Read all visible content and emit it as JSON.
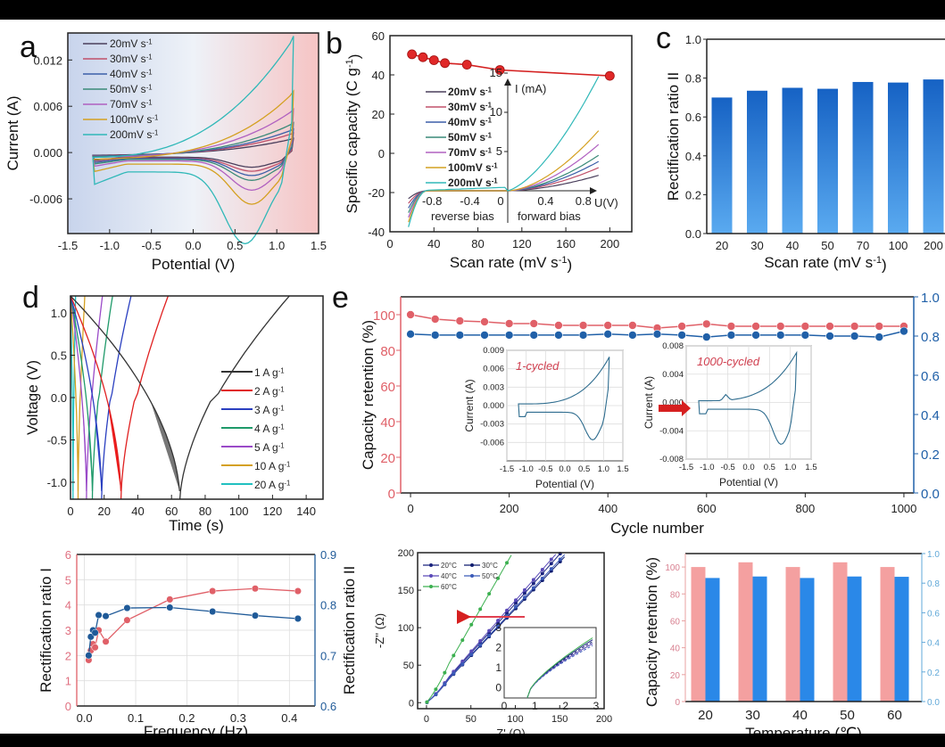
{
  "figure": {
    "panel_labels": [
      "a",
      "b",
      "c",
      "d",
      "e"
    ]
  },
  "chart_data": [
    {
      "id": "a",
      "type": "line",
      "title": "",
      "xlabel": "Potential  (V)",
      "ylabel": "Current  (A)",
      "xlim": [
        -1.5,
        1.5
      ],
      "ylim": [
        -0.0105,
        0.0155
      ],
      "xticks": [
        "-1.5",
        "-1.0",
        "-0.5",
        "0.0",
        "0.5",
        "1.0",
        "1.5"
      ],
      "xtick_values": [
        -1.5,
        -1.0,
        -0.5,
        0.0,
        0.5,
        1.0,
        1.5
      ],
      "yticks": [
        "-0.006",
        "0.000",
        "0.006",
        "0.012"
      ],
      "ytick_values": [
        -0.006,
        0.0,
        0.006,
        0.012
      ],
      "legend_position": "top-left",
      "background": "gradient blue (left) to red (right)",
      "series": [
        {
          "name": "20mV s-1",
          "color": "#4a3f5c",
          "peak_anodic": 0.0018,
          "peak_cathodic": -0.0013,
          "end_low": -0.001
        },
        {
          "name": "30mV s-1",
          "color": "#c0506a",
          "peak_anodic": 0.0025,
          "peak_cathodic": -0.0017,
          "end_low": -0.0012
        },
        {
          "name": "40mV s-1",
          "color": "#3b5fa8",
          "peak_anodic": 0.003,
          "peak_cathodic": -0.0022,
          "end_low": -0.0013
        },
        {
          "name": "50mV s-1",
          "color": "#3a8a78",
          "peak_anodic": 0.0038,
          "peak_cathodic": -0.0027,
          "end_low": -0.0015
        },
        {
          "name": "70mV s-1",
          "color": "#b060c0",
          "peak_anodic": 0.0055,
          "peak_cathodic": -0.0038,
          "end_low": -0.0018
        },
        {
          "name": "100mV s-1",
          "color": "#d4a020",
          "peak_anodic": 0.0078,
          "peak_cathodic": -0.0052,
          "end_low": -0.0025
        },
        {
          "name": "200mV s-1",
          "color": "#30b8b8",
          "peak_anodic": 0.0148,
          "peak_cathodic": -0.0093,
          "end_low": -0.0042
        }
      ]
    },
    {
      "id": "b",
      "type": "line",
      "xlabel": "Scan rate (mV s-1)",
      "ylabel": "Specific capacity (C g-1)",
      "xlim": [
        0,
        220
      ],
      "ylim": [
        -40,
        60
      ],
      "xticks": [
        "0",
        "40",
        "80",
        "120",
        "160",
        "200"
      ],
      "xtick_values": [
        0,
        40,
        80,
        120,
        160,
        200
      ],
      "yticks": [
        "-40",
        "-20",
        "0",
        "20",
        "40",
        "60"
      ],
      "ytick_values": [
        -40,
        -20,
        0,
        20,
        40,
        60
      ],
      "series": [
        {
          "name": "Specific capacity",
          "color": "#d42020",
          "x": [
            20,
            30,
            40,
            50,
            70,
            100,
            200
          ],
          "y": [
            50.5,
            49,
            47.5,
            46,
            45.2,
            42.5,
            39.5
          ]
        }
      ],
      "inset": {
        "xlabel": "U(V)",
        "ylabel": "I (mA)",
        "xticks": [
          "-0.8",
          "-0.4",
          "0",
          "0.4",
          "0.8"
        ],
        "yticks": [
          "5",
          "10",
          "15"
        ],
        "annotations": [
          "reverse bias",
          "forward bias"
        ],
        "legend": [
          {
            "name": "20mV s-1",
            "color": "#4a3f5c",
            "end": 2
          },
          {
            "name": "30mV s-1",
            "color": "#c0506a",
            "end": 3
          },
          {
            "name": "40mV s-1",
            "color": "#3b5fa8",
            "end": 3.8
          },
          {
            "name": "50mV s-1",
            "color": "#3a8a78",
            "end": 4.6
          },
          {
            "name": "70mV s-1",
            "color": "#b060c0",
            "end": 6
          },
          {
            "name": "100mV s-1",
            "color": "#d4a020",
            "end": 7.8
          },
          {
            "name": "200mV s-1",
            "color": "#30b8b8",
            "end": 14.8
          }
        ]
      }
    },
    {
      "id": "c",
      "type": "bar",
      "xlabel": "Scan rate (mV s-1)",
      "ylabel": "Rectification ratio II",
      "categories": [
        "20",
        "30",
        "40",
        "50",
        "70",
        "100",
        "200"
      ],
      "values": [
        0.7,
        0.735,
        0.75,
        0.745,
        0.78,
        0.777,
        0.793
      ],
      "ylim": [
        0,
        1.0
      ],
      "yticks": [
        "0.0",
        "0.2",
        "0.4",
        "0.6",
        "0.8",
        "1.0"
      ],
      "ytick_values": [
        0,
        0.2,
        0.4,
        0.6,
        0.8,
        1.0
      ],
      "colors": {
        "top": "#1662c4",
        "bottom": "#5aaaf0"
      }
    },
    {
      "id": "d",
      "type": "line",
      "xlabel": "Time (s)",
      "ylabel": "Voltage (V)",
      "xlim": [
        0,
        150
      ],
      "ylim": [
        -1.2,
        1.2
      ],
      "xticks": [
        "0",
        "20",
        "40",
        "60",
        "80",
        "100",
        "120",
        "140"
      ],
      "xtick_values": [
        0,
        20,
        40,
        60,
        80,
        100,
        120,
        140
      ],
      "yticks": [
        "-1.0",
        "-0.5",
        "0.0",
        "0.5",
        "1.0"
      ],
      "ytick_values": [
        -1.0,
        -0.5,
        0.0,
        0.5,
        1.0
      ],
      "legend_position": "center-right",
      "series": [
        {
          "name": "1 A g-1",
          "color": "#333333",
          "fill": "#707070",
          "discharge_end": 65,
          "charge_end": 130
        },
        {
          "name": "2 A g-1",
          "color": "#e02020",
          "fill": "#ee1010",
          "discharge_end": 30,
          "charge_end": 58
        },
        {
          "name": "3 A g-1",
          "color": "#2a3fc0",
          "fill": "#2a3fd0",
          "discharge_end": 18.5,
          "charge_end": 36
        },
        {
          "name": "4 A g-1",
          "color": "#1f9a6a",
          "fill": "#1f9a6a",
          "discharge_end": 13,
          "charge_end": 25
        },
        {
          "name": "5 A g-1",
          "color": "#9a4ac8",
          "fill": "#9a4ac8",
          "discharge_end": 9.5,
          "charge_end": 19
        },
        {
          "name": "10 A g-1",
          "color": "#d4a020",
          "fill": "#d4a020",
          "discharge_end": 4.5,
          "charge_end": 8.5
        },
        {
          "name": "20 A g-1",
          "color": "#20c0c0",
          "fill": "#20c0c0",
          "discharge_end": 1.5,
          "charge_end": 3
        }
      ]
    },
    {
      "id": "e",
      "type": "line",
      "xlabel": "Cycle number",
      "ylabel_left": "Capacity retention (%)",
      "ylabel_right": "",
      "xlim": [
        -20,
        1020
      ],
      "ylim_left": [
        0,
        110
      ],
      "ylim_right": [
        0,
        1.0
      ],
      "xticks": [
        "0",
        "200",
        "400",
        "600",
        "800",
        "1000"
      ],
      "xtick_values": [
        0,
        200,
        400,
        600,
        800,
        1000
      ],
      "yticks_left": [
        "0",
        "20",
        "40",
        "60",
        "80",
        "100"
      ],
      "yticks_right": [
        "0.0",
        "0.2",
        "0.4",
        "0.6",
        "0.8",
        "1.0"
      ],
      "series": [
        {
          "name": "Capacity retention",
          "axis": "left",
          "color": "#e06068",
          "x": [
            0,
            50,
            100,
            150,
            200,
            250,
            300,
            350,
            400,
            450,
            500,
            550,
            600,
            650,
            700,
            750,
            800,
            850,
            900,
            950,
            1000
          ],
          "y": [
            100,
            97.5,
            96.5,
            96,
            95,
            95,
            94,
            94,
            94,
            94,
            92.5,
            93.5,
            94.8,
            93.5,
            93.5,
            93.5,
            93.5,
            93.5,
            93.5,
            93.5,
            93.5
          ]
        },
        {
          "name": "Rectification ratio II",
          "axis": "right",
          "color": "#2060a8",
          "x": [
            0,
            50,
            100,
            150,
            200,
            250,
            300,
            350,
            400,
            450,
            500,
            550,
            600,
            650,
            700,
            750,
            800,
            850,
            900,
            950,
            1000
          ],
          "y": [
            0.81,
            0.805,
            0.805,
            0.805,
            0.805,
            0.805,
            0.805,
            0.805,
            0.81,
            0.805,
            0.81,
            0.805,
            0.795,
            0.805,
            0.805,
            0.805,
            0.805,
            0.8,
            0.8,
            0.795,
            0.825
          ]
        }
      ],
      "insets": [
        {
          "label": "1-cycled",
          "xlabel": "Potential (V)",
          "ylabel": "Current  (A)",
          "xticks": [
            "-1.5",
            "-1.0",
            "-0.5",
            "0.0",
            "0.5",
            "1.0",
            "1.5"
          ],
          "yticks": [
            "-0.006",
            "-0.003",
            "0.000",
            "0.003",
            "0.006",
            "0.009"
          ]
        },
        {
          "label": "1000-cycled",
          "xlabel": "Potential (V)",
          "ylabel": "Current  (A)",
          "xticks": [
            "-1.5",
            "-1.0",
            "-0.5",
            "0.0",
            "0.5",
            "1.0",
            "1.5"
          ],
          "yticks": [
            "-0.008",
            "-0.004",
            "0.000",
            "0.004",
            "0.008"
          ]
        }
      ]
    },
    {
      "id": "f",
      "type": "line",
      "xlabel": "Frequency (Hz)",
      "ylabel_left": "Rectification ratio I",
      "ylabel_right": "Rectification ratio II",
      "xlim": [
        -0.015,
        0.45
      ],
      "ylim_left": [
        0,
        6
      ],
      "ylim_right": [
        0.6,
        0.9
      ],
      "xticks": [
        "0.0",
        "0.1",
        "0.2",
        "0.3",
        "0.4"
      ],
      "xtick_values": [
        0,
        0.1,
        0.2,
        0.3,
        0.4
      ],
      "yticks_left": [
        "0",
        "1",
        "2",
        "3",
        "4",
        "5",
        "6"
      ],
      "yticks_right": [
        "0.6",
        "0.7",
        "0.8",
        "0.9"
      ],
      "grid": true,
      "series": [
        {
          "name": "Rectification ratio I",
          "axis": "left",
          "color": "#e06068",
          "x": [
            0.0083,
            0.0125,
            0.0167,
            0.0208,
            0.0278,
            0.0417,
            0.0833,
            0.1667,
            0.25,
            0.3333,
            0.4167
          ],
          "y": [
            1.82,
            2.2,
            2.45,
            2.32,
            3.0,
            2.55,
            3.4,
            4.22,
            4.55,
            4.65,
            4.55
          ]
        },
        {
          "name": "Rectification ratio II",
          "axis": "right",
          "color": "#1f5a98",
          "x": [
            0.0083,
            0.0125,
            0.0167,
            0.0208,
            0.0278,
            0.0417,
            0.0833,
            0.1667,
            0.25,
            0.3333,
            0.4167
          ],
          "y": [
            0.7,
            0.737,
            0.75,
            0.745,
            0.78,
            0.778,
            0.794,
            0.795,
            0.787,
            0.779,
            0.773
          ]
        }
      ]
    },
    {
      "id": "g",
      "type": "scatter",
      "xlabel": "Z' (Ω)",
      "ylabel": "-Z'' (Ω)",
      "xlim": [
        -10,
        200
      ],
      "ylim": [
        -8,
        200
      ],
      "xticks": [
        "0",
        "50",
        "100",
        "150",
        "200"
      ],
      "xtick_values": [
        0,
        50,
        100,
        150,
        200
      ],
      "yticks": [
        "0",
        "50",
        "100",
        "150",
        "200"
      ],
      "ytick_values": [
        0,
        50,
        100,
        150,
        200
      ],
      "legend_position": "top-left",
      "series": [
        {
          "name": "20°C",
          "color": "#1a237e",
          "slope": 1.32
        },
        {
          "name": "30°C",
          "color": "#0d1b6e",
          "slope": 1.25
        },
        {
          "name": "40°C",
          "color": "#5a4ab8",
          "slope": 1.36
        },
        {
          "name": "50°C",
          "color": "#3a5ab8",
          "slope": 1.27
        },
        {
          "name": "60°C",
          "color": "#3cb050",
          "slope": 2.06
        }
      ],
      "inset": {
        "xticks": [
          "0",
          "1",
          "2",
          "3"
        ],
        "yticks": [
          "0",
          "1",
          "2",
          "3"
        ]
      }
    },
    {
      "id": "h",
      "type": "bar",
      "xlabel": "Temperature (℃)",
      "ylabel_left": "Capacity retention (%)",
      "categories": [
        "20",
        "30",
        "40",
        "50",
        "60"
      ],
      "ylim_left": [
        0,
        110
      ],
      "ylim_right": [
        0,
        1.0
      ],
      "yticks_left": [
        "0",
        "20",
        "40",
        "60",
        "80",
        "100"
      ],
      "yticks_right": [
        "0.0",
        "0.2",
        "0.4",
        "0.6",
        "0.8",
        "1.0"
      ],
      "series": [
        {
          "name": "Capacity retention",
          "axis": "left",
          "color": "#f4a0a0",
          "values": [
            100,
            103.5,
            100,
            103.5,
            100
          ]
        },
        {
          "name": "Rectification ratio II",
          "axis": "right",
          "color": "#2a88e8",
          "values": [
            0.835,
            0.845,
            0.835,
            0.845,
            0.843
          ]
        }
      ]
    }
  ]
}
